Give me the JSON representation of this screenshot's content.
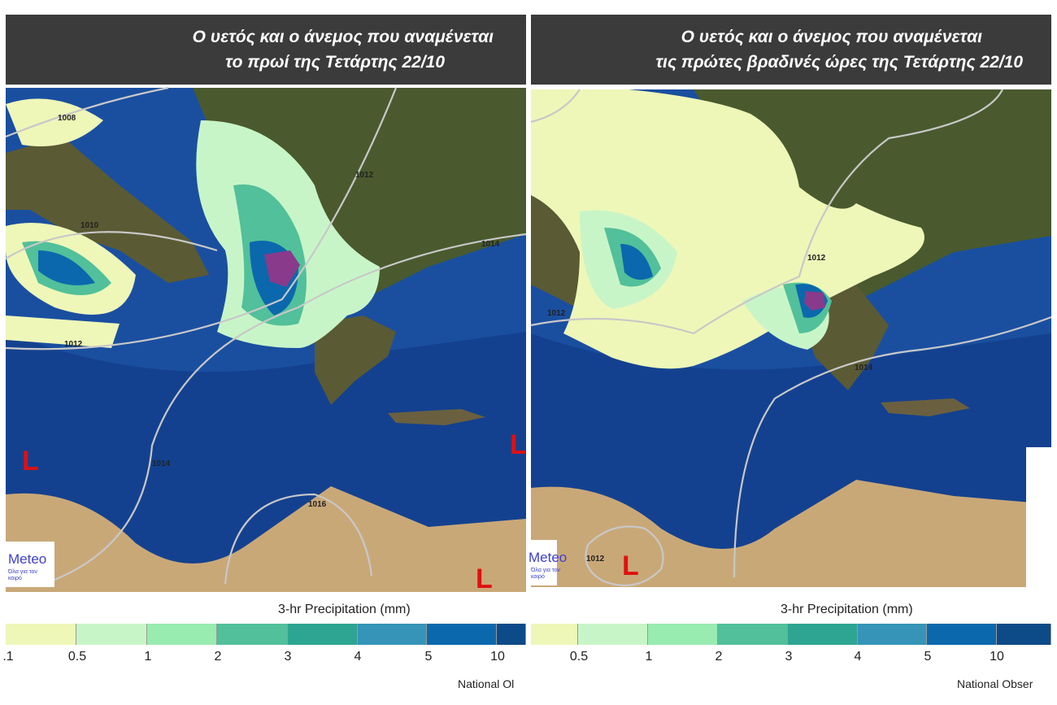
{
  "panels": [
    {
      "title_line1": "Ο υετός και ο άνεμος που αναμένεται",
      "title_line2": "το πρωί της Τετάρτης 22/10",
      "isobars": [
        "1008",
        "1010",
        "1012",
        "1012",
        "1014",
        "1014",
        "1016"
      ],
      "low_marker": "L",
      "legend": {
        "title": "3-hr Precipitation (mm)",
        "ticks": [
          ".1",
          "0.5",
          "1",
          "2",
          "3",
          "4",
          "5",
          "10"
        ],
        "credit": "National Ol"
      },
      "logo": {
        "name": "Meteo",
        "slogan": "Όλα για τον καιρό"
      }
    },
    {
      "title_line1": "Ο υετός και ο άνεμος που αναμένεται",
      "title_line2": "τις πρώτες βραδινές ώρες της Τετάρτης 22/10",
      "isobars": [
        "1012",
        "1012",
        "1014",
        "1012"
      ],
      "low_marker": "L",
      "legend": {
        "title": "3-hr Precipitation (mm)",
        "ticks": [
          "0.5",
          "1",
          "2",
          "3",
          "4",
          "5",
          "10"
        ],
        "credit": "National Obser"
      },
      "logo": {
        "name": "Meteo",
        "slogan": "Όλα για τον καιρό"
      }
    }
  ],
  "colors": {
    "scale": [
      "#eef7b8",
      "#c8f5c8",
      "#98ecb0",
      "#52c09a",
      "#2ea592",
      "#3594b8",
      "#0b68ad",
      "#0c4a88"
    ],
    "sea": "#123f8c",
    "land": "#4a5a2e",
    "desert": "#c9a878",
    "heavy": "#8a3a8a",
    "low": "#e01010",
    "header": "#3b3b3b"
  }
}
